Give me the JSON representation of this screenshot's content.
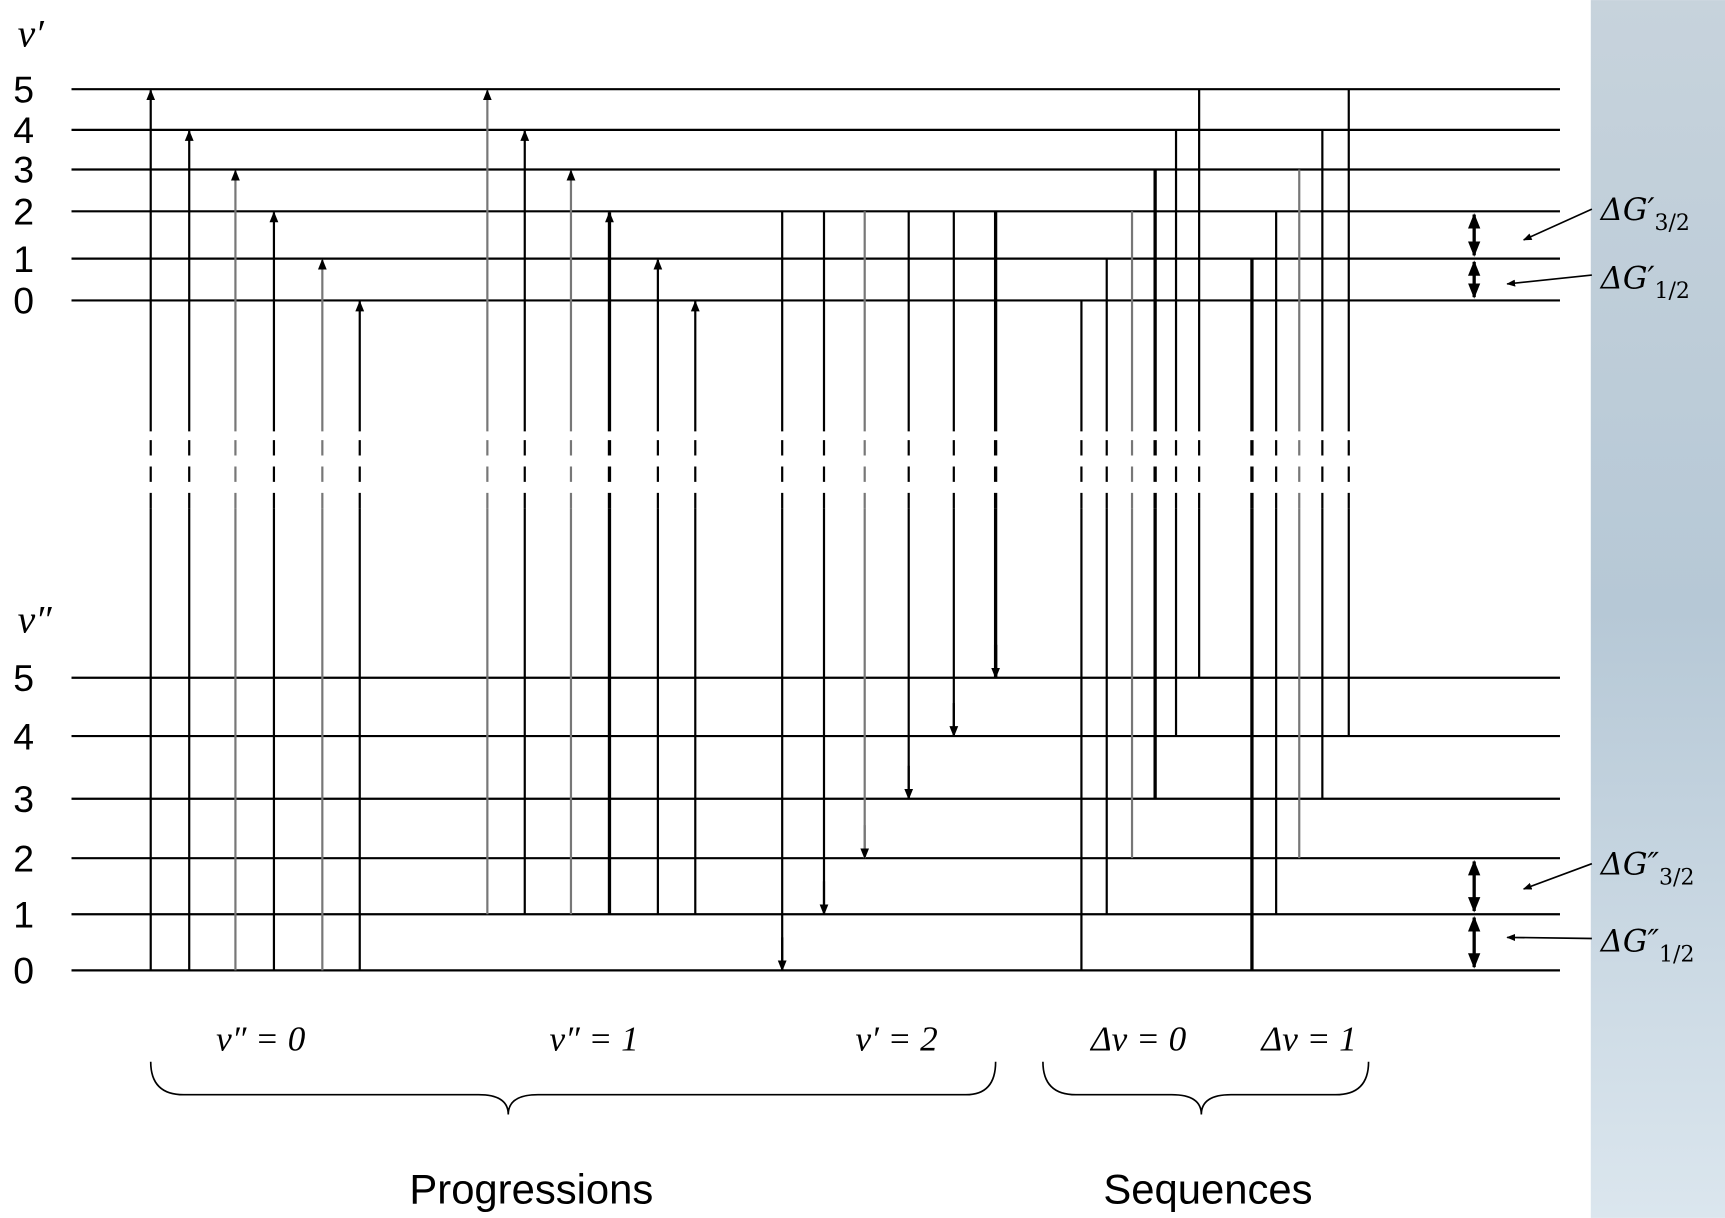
{
  "upper_state": {
    "label": "v′",
    "levels": [
      "0",
      "1",
      "2",
      "3",
      "4",
      "5"
    ]
  },
  "lower_state": {
    "label": "v″",
    "levels": [
      "0",
      "1",
      "2",
      "3",
      "4",
      "5"
    ]
  },
  "groups": [
    {
      "label": "v″ = 0"
    },
    {
      "label": "v″ = 1"
    },
    {
      "label": "v′ = 2"
    },
    {
      "label": "Δv = 0"
    },
    {
      "label": "Δv = 1"
    }
  ],
  "brackets": [
    {
      "label": "Progressions"
    },
    {
      "label": "Sequences"
    }
  ],
  "spacings": [
    {
      "symbol": "ΔG′",
      "subscript": "3/2"
    },
    {
      "symbol": "ΔG′",
      "subscript": "1/2"
    },
    {
      "symbol": "ΔG″",
      "subscript": "3/2"
    },
    {
      "symbol": "ΔG″",
      "subscript": "1/2"
    }
  ]
}
